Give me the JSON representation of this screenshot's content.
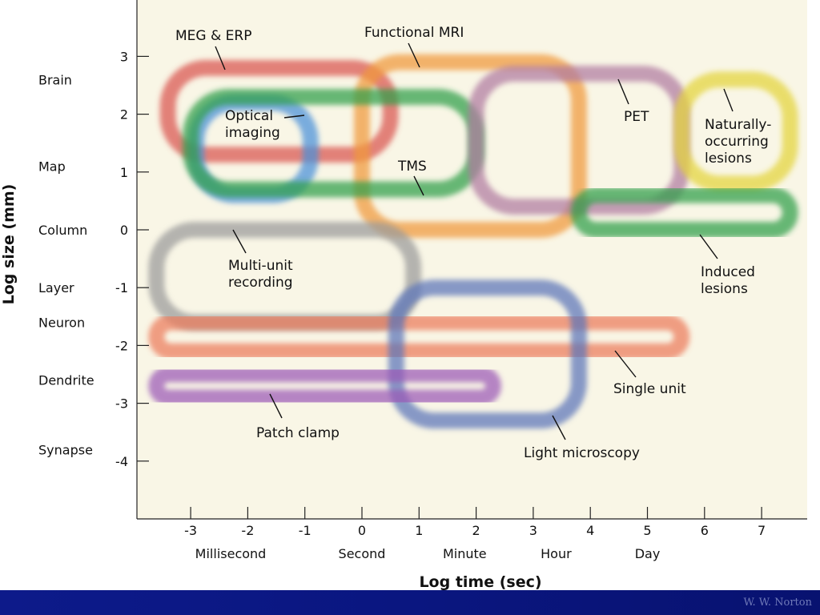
{
  "chart_data": {
    "type": "scatter",
    "xlabel": "Log time (sec)",
    "ylabel": "Log size (mm)",
    "xlim": [
      -3.9,
      7.9
    ],
    "ylim": [
      -5.0,
      4.0
    ],
    "x_ticks": [
      -3,
      -2,
      -1,
      0,
      1,
      2,
      3,
      4,
      5,
      6,
      7
    ],
    "y_ticks": [
      3,
      2,
      1,
      0,
      -1,
      -2,
      -3,
      -4
    ],
    "x_named_ticks": [
      {
        "x": -2.3,
        "label": "Millisecond"
      },
      {
        "x": 0,
        "label": "Second"
      },
      {
        "x": 1.8,
        "label": "Minute"
      },
      {
        "x": 3.4,
        "label": "Hour"
      },
      {
        "x": 5.0,
        "label": "Day"
      }
    ],
    "y_named_ticks": [
      {
        "y": 2.6,
        "label": "Brain"
      },
      {
        "y": 1.1,
        "label": "Map"
      },
      {
        "y": 0.0,
        "label": "Column"
      },
      {
        "y": -1.0,
        "label": "Layer"
      },
      {
        "y": -1.6,
        "label": "Neuron"
      },
      {
        "y": -2.6,
        "label": "Dendrite"
      },
      {
        "y": -3.8,
        "label": "Synapse"
      }
    ],
    "regions": [
      {
        "name": "MEG & ERP",
        "color": "#d9534f",
        "x_range": [
          -3.4,
          0.5
        ],
        "y_range": [
          1.3,
          2.8
        ]
      },
      {
        "name": "Functional MRI",
        "color": "#f0993a",
        "x_range": [
          0.0,
          3.8
        ],
        "y_range": [
          0.0,
          2.9
        ]
      },
      {
        "name": "Optical imaging",
        "color": "#4a90d9",
        "x_range": [
          -2.9,
          -0.9
        ],
        "y_range": [
          0.6,
          2.2
        ]
      },
      {
        "name": "TMS",
        "color": "#2e9e4a",
        "x_range": [
          -3.0,
          2.0
        ],
        "y_range": [
          0.7,
          2.3
        ]
      },
      {
        "name": "PET",
        "color": "#b07aa1",
        "x_range": [
          2.0,
          5.6
        ],
        "y_range": [
          0.4,
          2.7
        ]
      },
      {
        "name": "Naturally-occurring lesions",
        "color": "#e3d43a",
        "x_range": [
          5.6,
          7.5
        ],
        "y_range": [
          0.8,
          2.6
        ]
      },
      {
        "name": "Induced lesions",
        "color": "#2e9e4a",
        "x_range": [
          3.8,
          7.5
        ],
        "y_range": [
          0.0,
          0.6
        ]
      },
      {
        "name": "Multi-unit recording",
        "color": "#9a9a9a",
        "x_range": [
          -3.6,
          0.9
        ],
        "y_range": [
          -1.6,
          0.0
        ]
      },
      {
        "name": "Single unit",
        "color": "#ec7a5c",
        "x_range": [
          -3.6,
          5.6
        ],
        "y_range": [
          -2.1,
          -1.6
        ]
      },
      {
        "name": "Light microscopy",
        "color": "#5a74b8",
        "x_range": [
          0.6,
          3.8
        ],
        "y_range": [
          -3.3,
          -1.0
        ]
      },
      {
        "name": "Patch clamp",
        "color": "#9b59b6",
        "x_range": [
          -3.6,
          2.3
        ],
        "y_range": [
          -2.9,
          -2.5
        ]
      }
    ],
    "labels": [
      {
        "text": "MEG & ERP",
        "lines": [
          "MEG & ERP"
        ]
      },
      {
        "text": "Functional MRI",
        "lines": [
          "Functional MRI"
        ]
      },
      {
        "text": "Optical imaging",
        "lines": [
          "Optical",
          "imaging"
        ]
      },
      {
        "text": "TMS",
        "lines": [
          "TMS"
        ]
      },
      {
        "text": "PET",
        "lines": [
          "PET"
        ]
      },
      {
        "text": "Naturally-occurring lesions",
        "lines": [
          "Naturally-",
          "occurring",
          "lesions"
        ]
      },
      {
        "text": "Induced lesions",
        "lines": [
          "Induced",
          "lesions"
        ]
      },
      {
        "text": "Multi-unit recording",
        "lines": [
          "Multi-unit",
          "recording"
        ]
      },
      {
        "text": "Single unit",
        "lines": [
          "Single unit"
        ]
      },
      {
        "text": "Light microscopy",
        "lines": [
          "Light microscopy"
        ]
      },
      {
        "text": "Patch clamp",
        "lines": [
          "Patch clamp"
        ]
      }
    ]
  },
  "footer": {
    "credit": "W. W. Norton",
    "background": "#0d1a8a"
  }
}
